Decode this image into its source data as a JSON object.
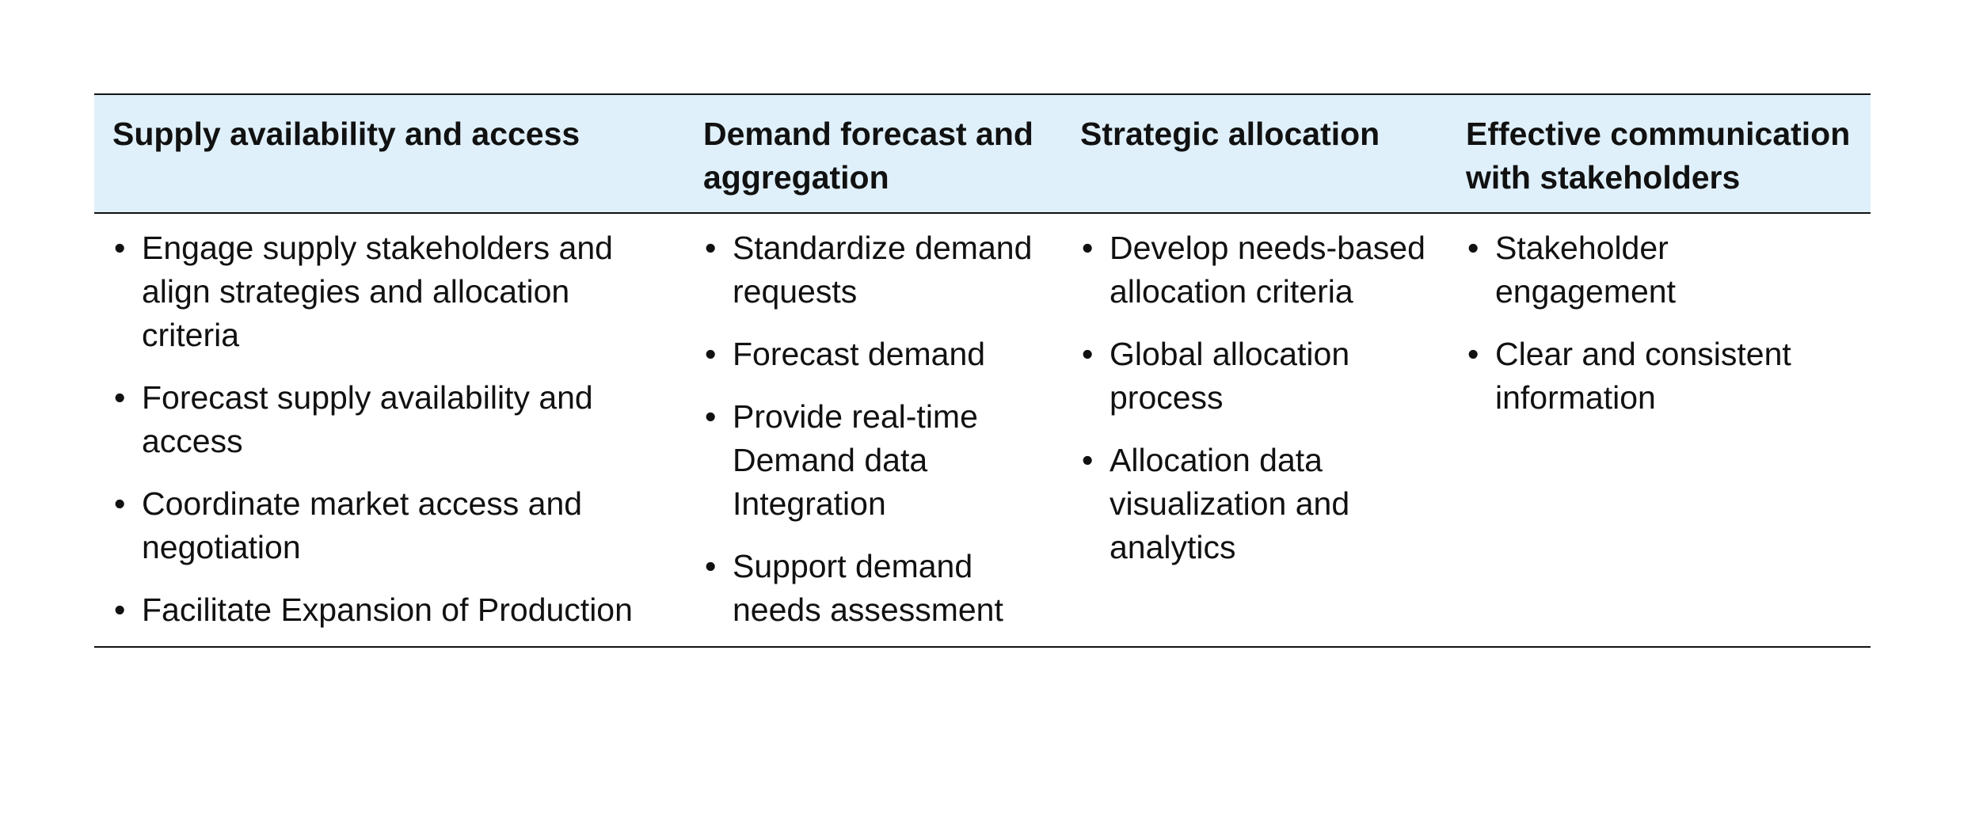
{
  "colors": {
    "header_background": "#dff0fb",
    "rule": "#111111"
  },
  "columns": [
    {
      "heading": "Supply availability and access",
      "items": [
        "Engage supply stakeholders and align strategies and allocation criteria",
        "Forecast supply availability and access",
        "Coordinate market access and negotiation",
        "Facilitate Expansion of Production"
      ]
    },
    {
      "heading": "Demand forecast and aggregation",
      "items": [
        "Standardize demand requests",
        "Forecast demand",
        "Provide real-time Demand data Integration",
        "Support demand needs assessment"
      ]
    },
    {
      "heading": "Strategic allocation",
      "items": [
        "Develop needs-based allocation criteria",
        "Global allocation process",
        "Allocation data visualization and analytics"
      ]
    },
    {
      "heading": "Effective communication with stakeholders",
      "items": [
        "Stakeholder engagement",
        "Clear and consistent information"
      ]
    }
  ]
}
